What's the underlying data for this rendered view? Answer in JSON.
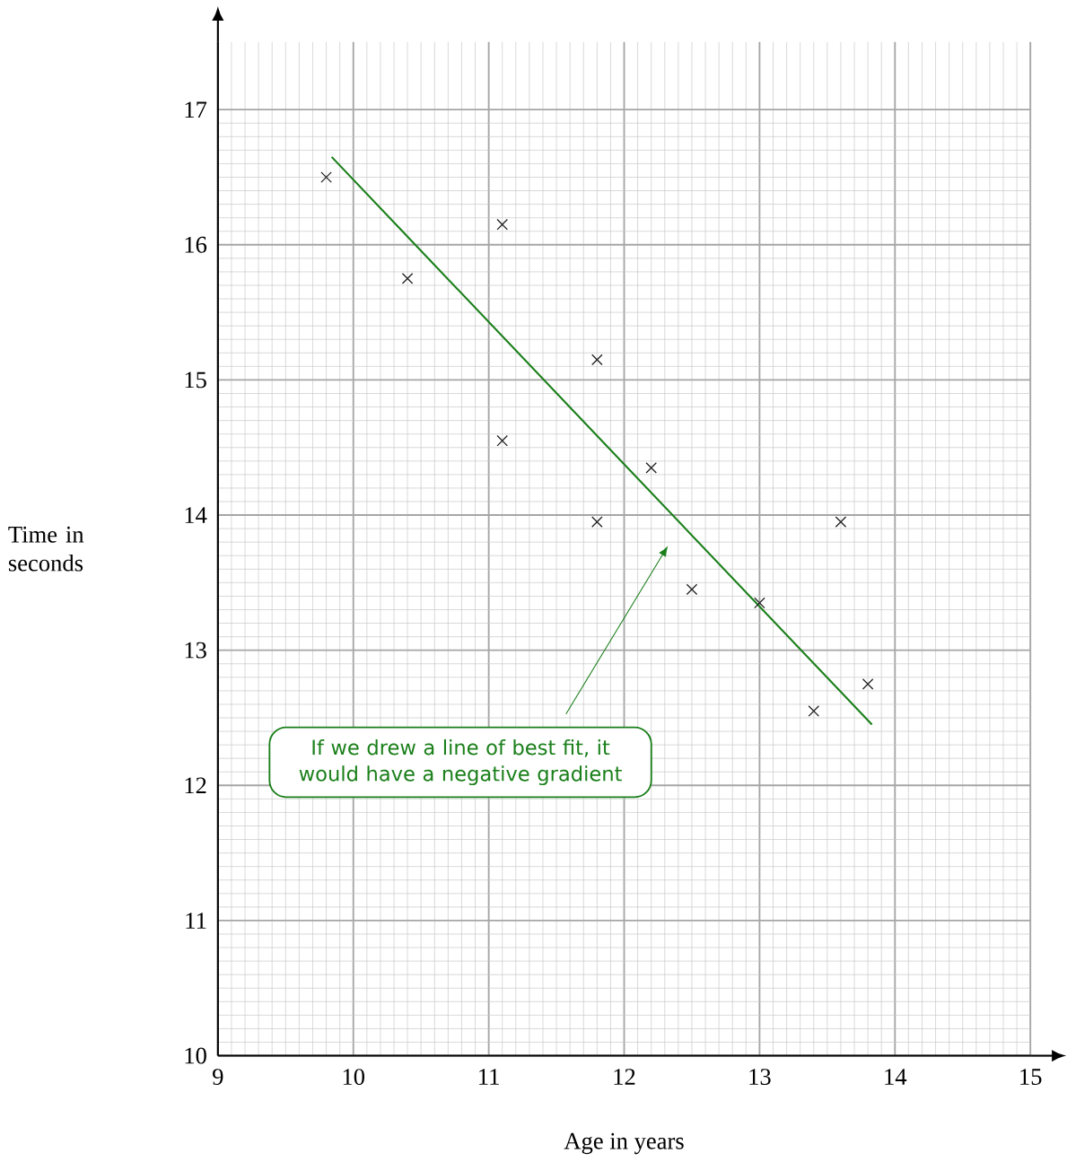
{
  "chart_data": {
    "type": "scatter",
    "xlabel": "Age in years",
    "ylabel": "Time in seconds",
    "xlim": [
      9,
      15
    ],
    "ylim": [
      10,
      17.5
    ],
    "xticks": [
      9,
      10,
      11,
      12,
      13,
      14,
      15
    ],
    "yticks": [
      10,
      11,
      12,
      13,
      14,
      15,
      16,
      17
    ],
    "grid": true,
    "series": [
      {
        "color": "#222222",
        "marker": "cross",
        "x": [
          9.8,
          10.4,
          11.1,
          11.8,
          11.1,
          11.8,
          12.2,
          12.5,
          13.0,
          13.4,
          13.6,
          13.8
        ],
        "values": [
          16.5,
          15.75,
          16.15,
          15.15,
          14.55,
          13.95,
          14.35,
          13.45,
          13.35,
          12.55,
          13.95,
          12.75
        ]
      },
      {
        "type": "line",
        "color": "#1a7f1a",
        "marker": "none",
        "line_style": "solid",
        "x": [
          9.84,
          13.83
        ],
        "values": [
          16.65,
          12.45
        ]
      }
    ],
    "annotations": [
      "If we drew a line of best fit, it would have a negative gradient"
    ]
  }
}
